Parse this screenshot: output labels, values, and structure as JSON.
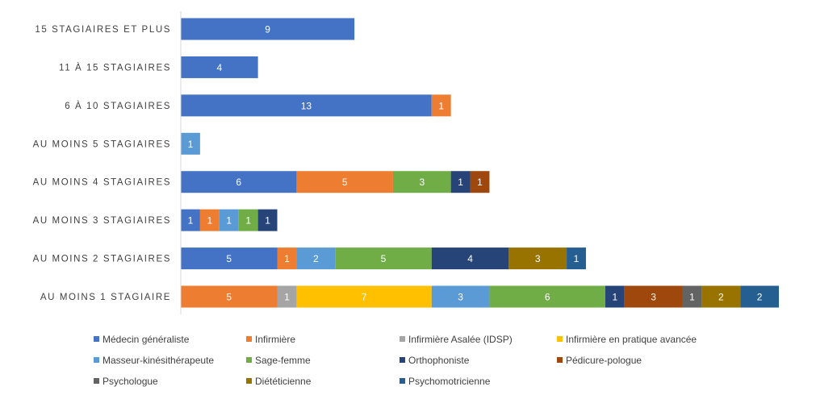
{
  "chart_data": {
    "type": "bar",
    "orientation": "horizontal",
    "stacked": true,
    "categories": [
      "15 STAGIAIRES ET PLUS",
      "11 À 15 STAGIAIRES",
      "6 À 10 STAGIAIRES",
      "AU MOINS 5 STAGIAIRES",
      "AU MOINS 4 STAGIAIRES",
      "AU MOINS 3 STAGIAIRES",
      "AU MOINS 2 STAGIAIRES",
      "AU MOINS 1 STAGIAIRE"
    ],
    "series": [
      {
        "name": "Médecin généraliste",
        "color": "#4472C4",
        "values": [
          9,
          4,
          13,
          0,
          6,
          1,
          5,
          0
        ]
      },
      {
        "name": "Infirmière",
        "color": "#ED7D31",
        "values": [
          0,
          0,
          1,
          0,
          5,
          1,
          1,
          5
        ]
      },
      {
        "name": "Infirmière Asalée (IDSP)",
        "color": "#A5A5A5",
        "values": [
          0,
          0,
          0,
          0,
          0,
          0,
          0,
          1
        ]
      },
      {
        "name": "Infirmière en pratique avancée",
        "color": "#FFC000",
        "values": [
          0,
          0,
          0,
          0,
          0,
          0,
          0,
          7
        ]
      },
      {
        "name": "Masseur-kinésithérapeute",
        "color": "#5B9BD5",
        "values": [
          0,
          0,
          0,
          1,
          0,
          1,
          2,
          3
        ]
      },
      {
        "name": "Sage-femme",
        "color": "#70AD47",
        "values": [
          0,
          0,
          0,
          0,
          3,
          1,
          5,
          6
        ]
      },
      {
        "name": "Orthophoniste",
        "color": "#264478",
        "values": [
          0,
          0,
          0,
          0,
          1,
          1,
          4,
          1
        ]
      },
      {
        "name": "Pédicure-pologue",
        "color": "#9E480E",
        "values": [
          0,
          0,
          0,
          0,
          1,
          0,
          0,
          3
        ]
      },
      {
        "name": "Psychologue",
        "color": "#636363",
        "values": [
          0,
          0,
          0,
          0,
          0,
          0,
          0,
          1
        ]
      },
      {
        "name": "Diététicienne",
        "color": "#997300",
        "values": [
          0,
          0,
          0,
          0,
          0,
          0,
          3,
          2
        ]
      },
      {
        "name": "Psychomotricienne",
        "color": "#255E91",
        "values": [
          0,
          0,
          0,
          0,
          0,
          0,
          1,
          2
        ]
      }
    ],
    "xlim": [
      0,
      31
    ],
    "grid": false,
    "legend_position": "bottom",
    "data_labels": true
  }
}
